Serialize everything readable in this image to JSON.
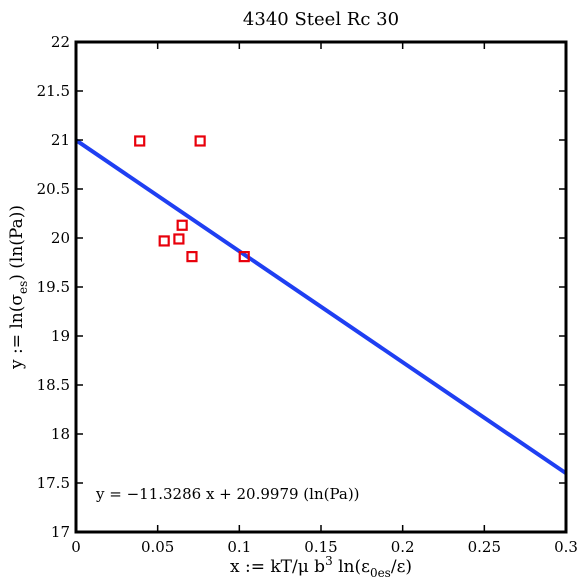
{
  "chart_data": {
    "type": "scatter",
    "title": "4340 Steel Rc 30",
    "xlabel": {
      "main": "x := kT/μ b",
      "sup": "3",
      "mid": " ln(ε",
      "sub": "0es",
      "end": "/ε)"
    },
    "ylabel": {
      "main": "y := ln(σ",
      "sub": "es",
      "end": ") (ln(Pa))"
    },
    "xlim": [
      0,
      0.3
    ],
    "ylim": [
      17,
      22
    ],
    "xticks": [
      0,
      0.05,
      0.1,
      0.15,
      0.2,
      0.25,
      0.3
    ],
    "xtick_labels": [
      "0",
      "0.05",
      "0.1",
      "0.15",
      "0.2",
      "0.25",
      "0.3"
    ],
    "yticks": [
      17,
      17.5,
      18,
      18.5,
      19,
      19.5,
      20,
      20.5,
      21,
      21.5,
      22
    ],
    "ytick_labels": [
      "17",
      "17.5",
      "18",
      "18.5",
      "19",
      "19.5",
      "20",
      "20.5",
      "21",
      "21.5",
      "22"
    ],
    "grid": false,
    "points": {
      "color": "#e8000b",
      "marker": "square",
      "x": [
        0.039,
        0.076,
        0.054,
        0.063,
        0.065,
        0.071,
        0.103
      ],
      "y": [
        20.99,
        20.99,
        19.97,
        19.99,
        20.13,
        19.81,
        19.81
      ]
    },
    "fit_line": {
      "color": "#1f3ff2",
      "slope": -11.3286,
      "intercept": 20.9979
    },
    "annotation": "y = −11.3286 x + 20.9979 (ln(Pa))"
  }
}
